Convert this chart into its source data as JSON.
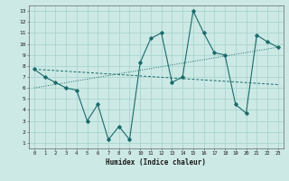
{
  "xlabel": "Humidex (Indice chaleur)",
  "background_color": "#cce9e5",
  "grid_color": "#aad4cf",
  "line_color": "#1a6b6b",
  "xlim": [
    -0.5,
    23.5
  ],
  "ylim": [
    0.5,
    13.5
  ],
  "xticks": [
    0,
    1,
    2,
    3,
    4,
    5,
    6,
    7,
    8,
    9,
    10,
    11,
    12,
    13,
    14,
    15,
    16,
    17,
    18,
    19,
    20,
    21,
    22,
    23
  ],
  "yticks": [
    1,
    2,
    3,
    4,
    5,
    6,
    7,
    8,
    9,
    10,
    11,
    12,
    13
  ],
  "series1_x": [
    0,
    1,
    2,
    3,
    4,
    5,
    6,
    7,
    8,
    9,
    10,
    11,
    12,
    13,
    14,
    15,
    16,
    17,
    18,
    19,
    20,
    21,
    22,
    23
  ],
  "series1_y": [
    7.7,
    7.0,
    6.5,
    6.0,
    5.8,
    3.0,
    4.5,
    1.3,
    2.5,
    1.3,
    8.3,
    10.5,
    11.0,
    6.5,
    7.0,
    13.0,
    11.0,
    9.2,
    9.0,
    4.5,
    3.7,
    10.8,
    10.2,
    9.7
  ],
  "series2_x": [
    0,
    23
  ],
  "series2_y": [
    7.7,
    6.3
  ],
  "series3_x": [
    0,
    23
  ],
  "series3_y": [
    6.0,
    9.7
  ]
}
